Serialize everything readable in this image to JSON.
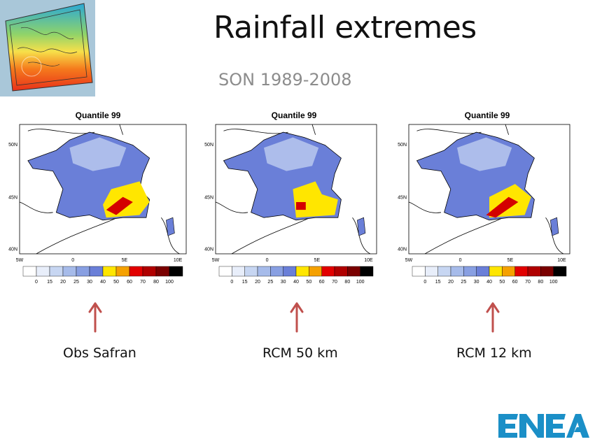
{
  "slide": {
    "title": "Rainfall extremes",
    "subtitle": "SON 1989-2008"
  },
  "panels": [
    {
      "title": "Quantile 99",
      "caption": "Obs Safran"
    },
    {
      "title": "Quantile 99",
      "caption": "RCM 50 km"
    },
    {
      "title": "Quantile 99",
      "caption": "RCM 12 km"
    }
  ],
  "map_axes": {
    "lat_labels": [
      "50N",
      "45N",
      "40N"
    ],
    "lon_labels": [
      "5W",
      "0",
      "5E",
      "10E"
    ]
  },
  "colorbar": {
    "labels": [
      "0",
      "15",
      "20",
      "25",
      "30",
      "40",
      "50",
      "60",
      "70",
      "80",
      "100"
    ],
    "colors": [
      "#ffffff",
      "#e8eefa",
      "#c7d6f2",
      "#a6bbea",
      "#889fe2",
      "#6a7fd8",
      "#ffe600",
      "#f5a100",
      "#e20000",
      "#b00000",
      "#7a0000",
      "#000000"
    ]
  },
  "colors": {
    "arrow": "#c0504d",
    "logo": "#1b8fc7",
    "map_land": "#6a7fd8",
    "map_light": "#b9c8ee",
    "map_extreme": "#ffe600",
    "map_hot": "#d40000"
  },
  "logo": {
    "text": "ENEA"
  },
  "icons": {
    "arrow": "up-arrow-icon",
    "thumbnail": "europe-temperature-map-icon"
  }
}
